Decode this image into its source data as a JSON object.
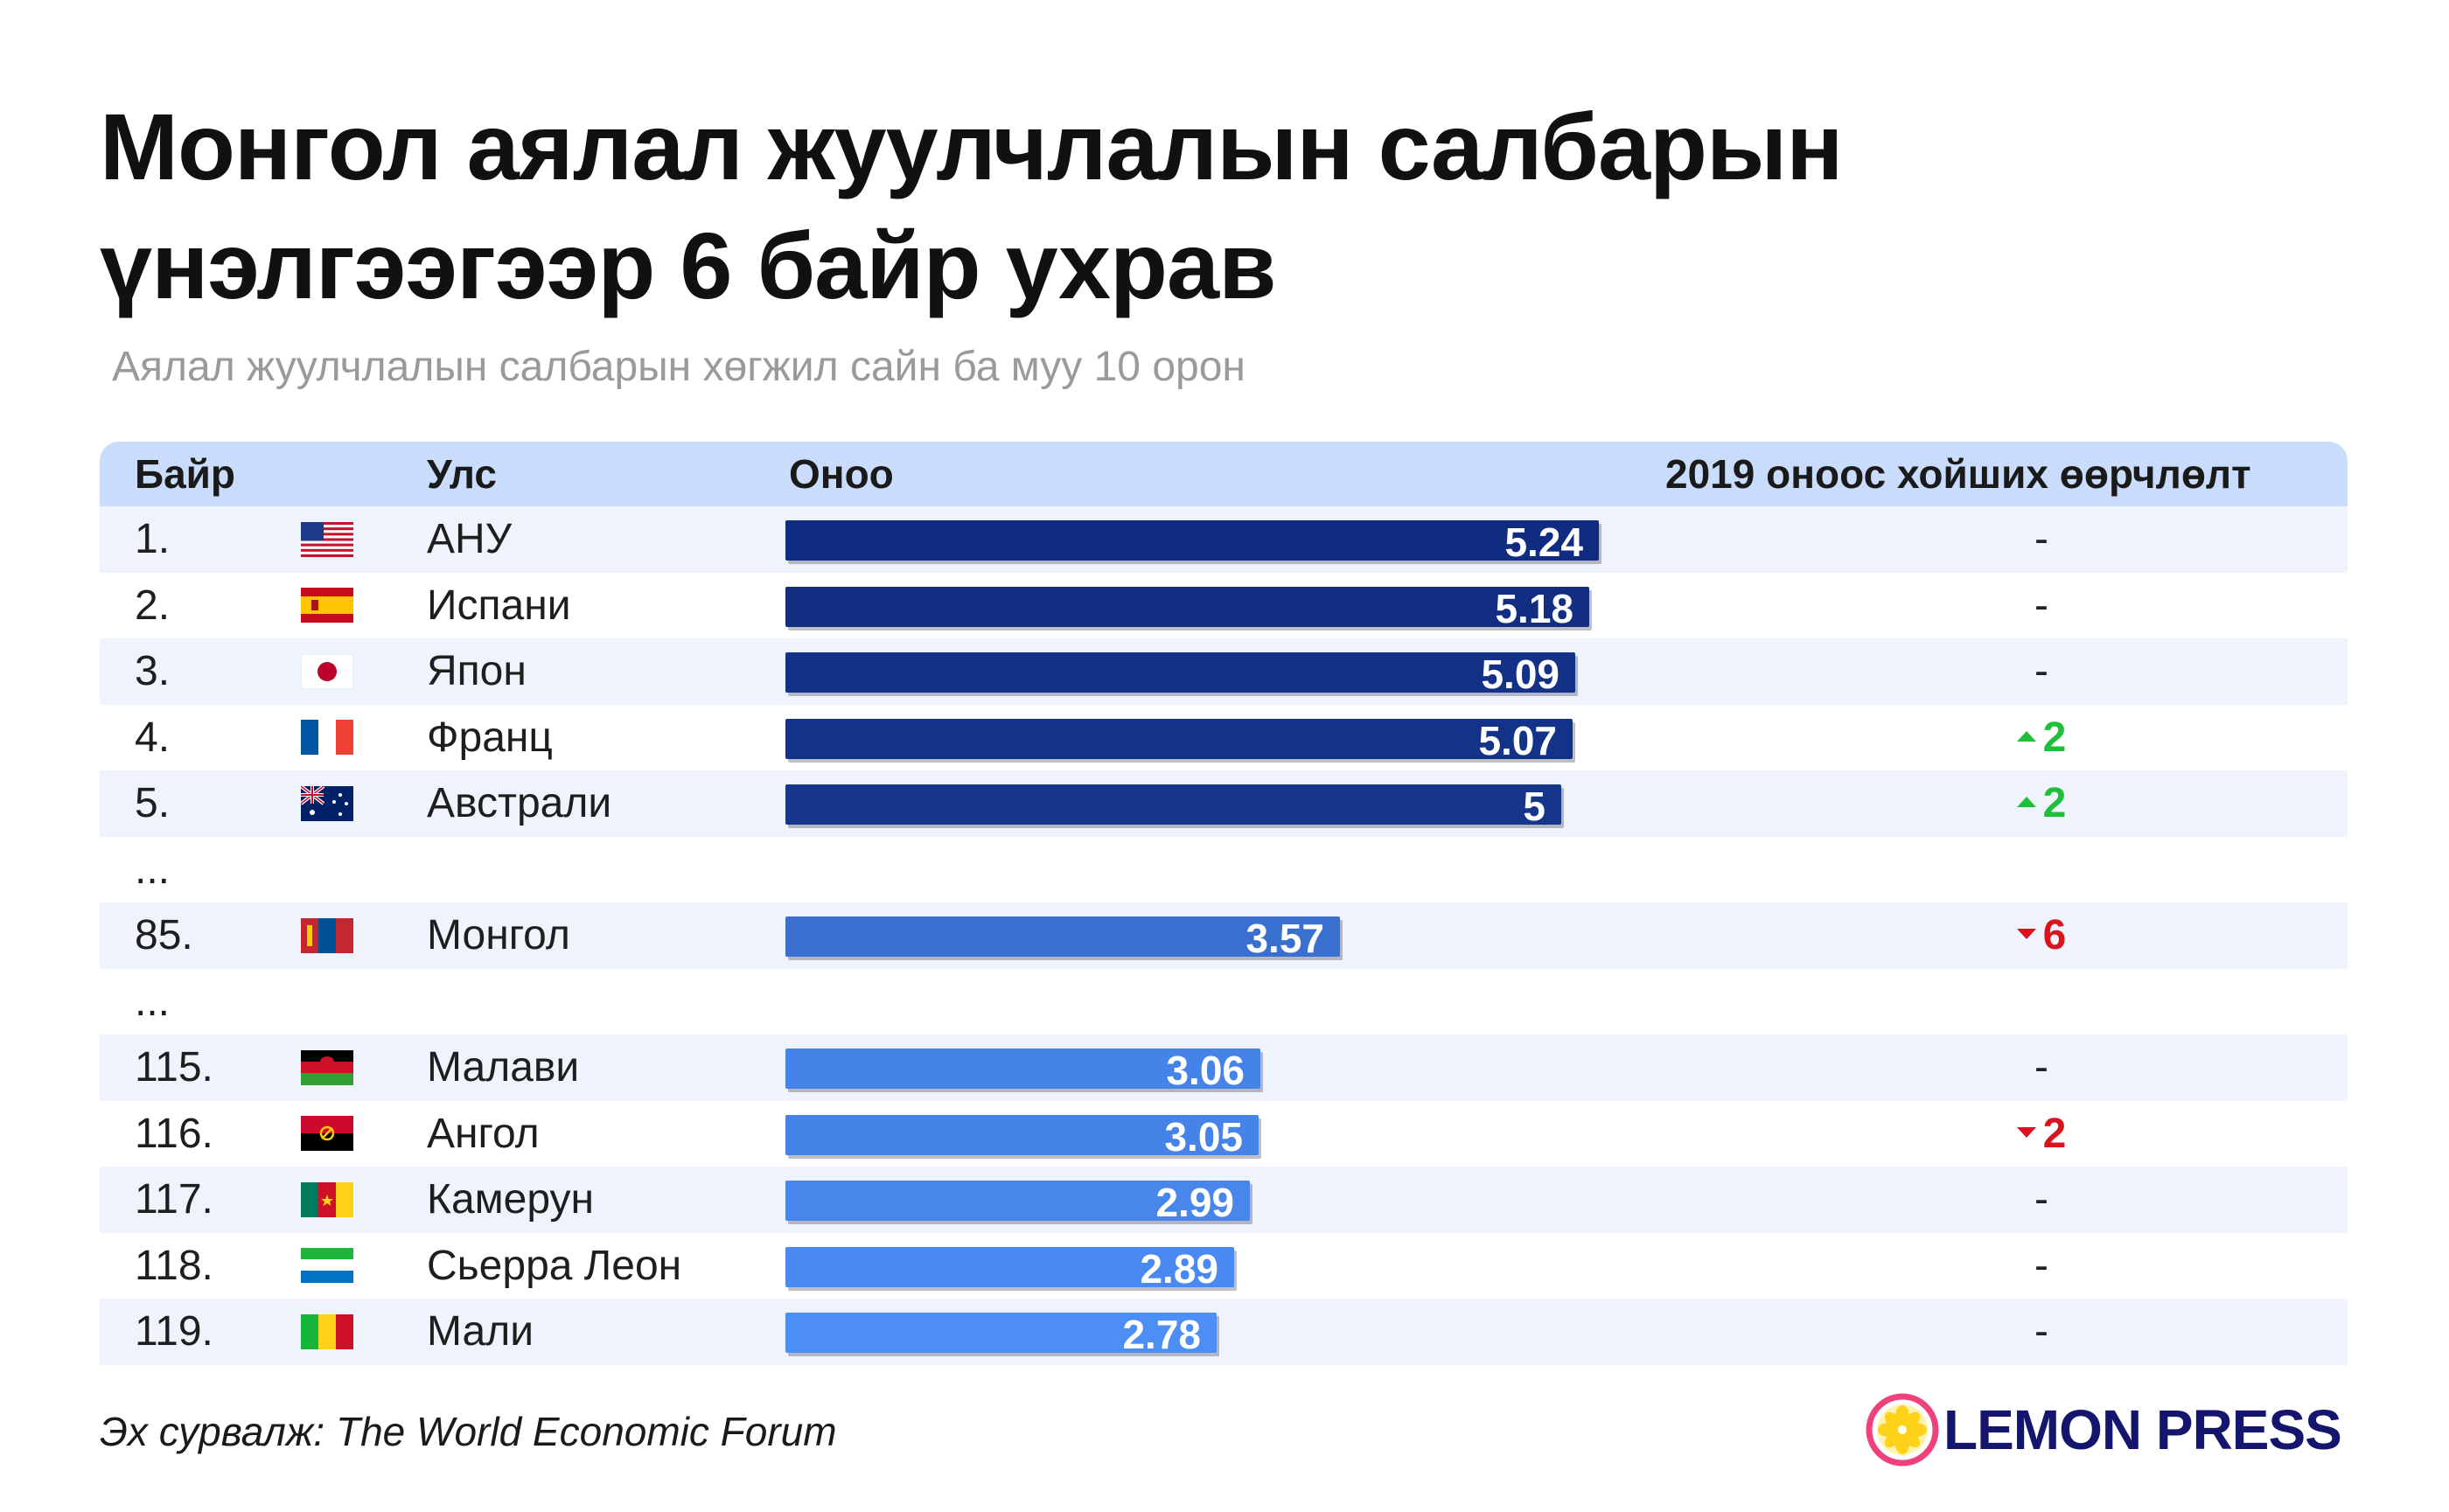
{
  "title_line1": "Монгол аялал жуулчлалын салбарын",
  "title_line2": "үнэлгээгээр 6 байр ухрав",
  "subtitle": "Аялал жуулчлалын салбарын хөгжил сайн ба муу 10 орон",
  "headers": {
    "rank": "Байр",
    "country": "Улс",
    "score": "Оноо",
    "change": "2019 оноос хойших өөрчлөлт"
  },
  "ellipsis": "...",
  "source": "Эх сурвалж: The World Economic Forum",
  "logo_text": "LEMON PRESS",
  "colors": {
    "header_bg": "#c9dcfb",
    "row_stripe": "#eef3fc",
    "bar_dark": "#0f2c80",
    "bar_light": "#4d8ef5",
    "up": "#1fbf3a",
    "down": "#d9141e",
    "logo_text": "#14166e",
    "logo_ring": "#f0427a",
    "logo_lemon": "#ffd21a"
  },
  "chart_data": {
    "type": "bar",
    "title": "Монгол аялал жуулчлалын салбарын үнэлгээгээр 6 байр ухрав",
    "subtitle": "Аялал жуулчлалын салбарын хөгжил сайн ба муу 10 орон",
    "xlim": [
      0,
      5.24
    ],
    "rows": [
      {
        "rank": "1.",
        "country": "АНУ",
        "flag": "us-flag-icon",
        "score": 5.24,
        "score_label": "5.24",
        "change_dir": "none",
        "change": "-"
      },
      {
        "rank": "2.",
        "country": "Испани",
        "flag": "es-flag-icon",
        "score": 5.18,
        "score_label": "5.18",
        "change_dir": "none",
        "change": "-"
      },
      {
        "rank": "3.",
        "country": "Япон",
        "flag": "jp-flag-icon",
        "score": 5.09,
        "score_label": "5.09",
        "change_dir": "none",
        "change": "-"
      },
      {
        "rank": "4.",
        "country": "Франц",
        "flag": "fr-flag-icon",
        "score": 5.07,
        "score_label": "5.07",
        "change_dir": "up",
        "change": "2"
      },
      {
        "rank": "5.",
        "country": "Австрали",
        "flag": "au-flag-icon",
        "score": 5.0,
        "score_label": "5",
        "change_dir": "up",
        "change": "2"
      },
      {
        "rank": "85.",
        "country": "Монгол",
        "flag": "mn-flag-icon",
        "score": 3.57,
        "score_label": "3.57",
        "change_dir": "down",
        "change": "6"
      },
      {
        "rank": "115.",
        "country": "Малави",
        "flag": "mw-flag-icon",
        "score": 3.06,
        "score_label": "3.06",
        "change_dir": "none",
        "change": "-"
      },
      {
        "rank": "116.",
        "country": "Ангол",
        "flag": "ao-flag-icon",
        "score": 3.05,
        "score_label": "3.05",
        "change_dir": "down",
        "change": "2"
      },
      {
        "rank": "117.",
        "country": "Камерун",
        "flag": "cm-flag-icon",
        "score": 2.99,
        "score_label": "2.99",
        "change_dir": "none",
        "change": "-"
      },
      {
        "rank": "118.",
        "country": "Сьерра Леон",
        "flag": "sl-flag-icon",
        "score": 2.89,
        "score_label": "2.89",
        "change_dir": "none",
        "change": "-"
      },
      {
        "rank": "119.",
        "country": "Мали",
        "flag": "ml-flag-icon",
        "score": 2.78,
        "score_label": "2.78",
        "change_dir": "none",
        "change": "-"
      }
    ]
  }
}
